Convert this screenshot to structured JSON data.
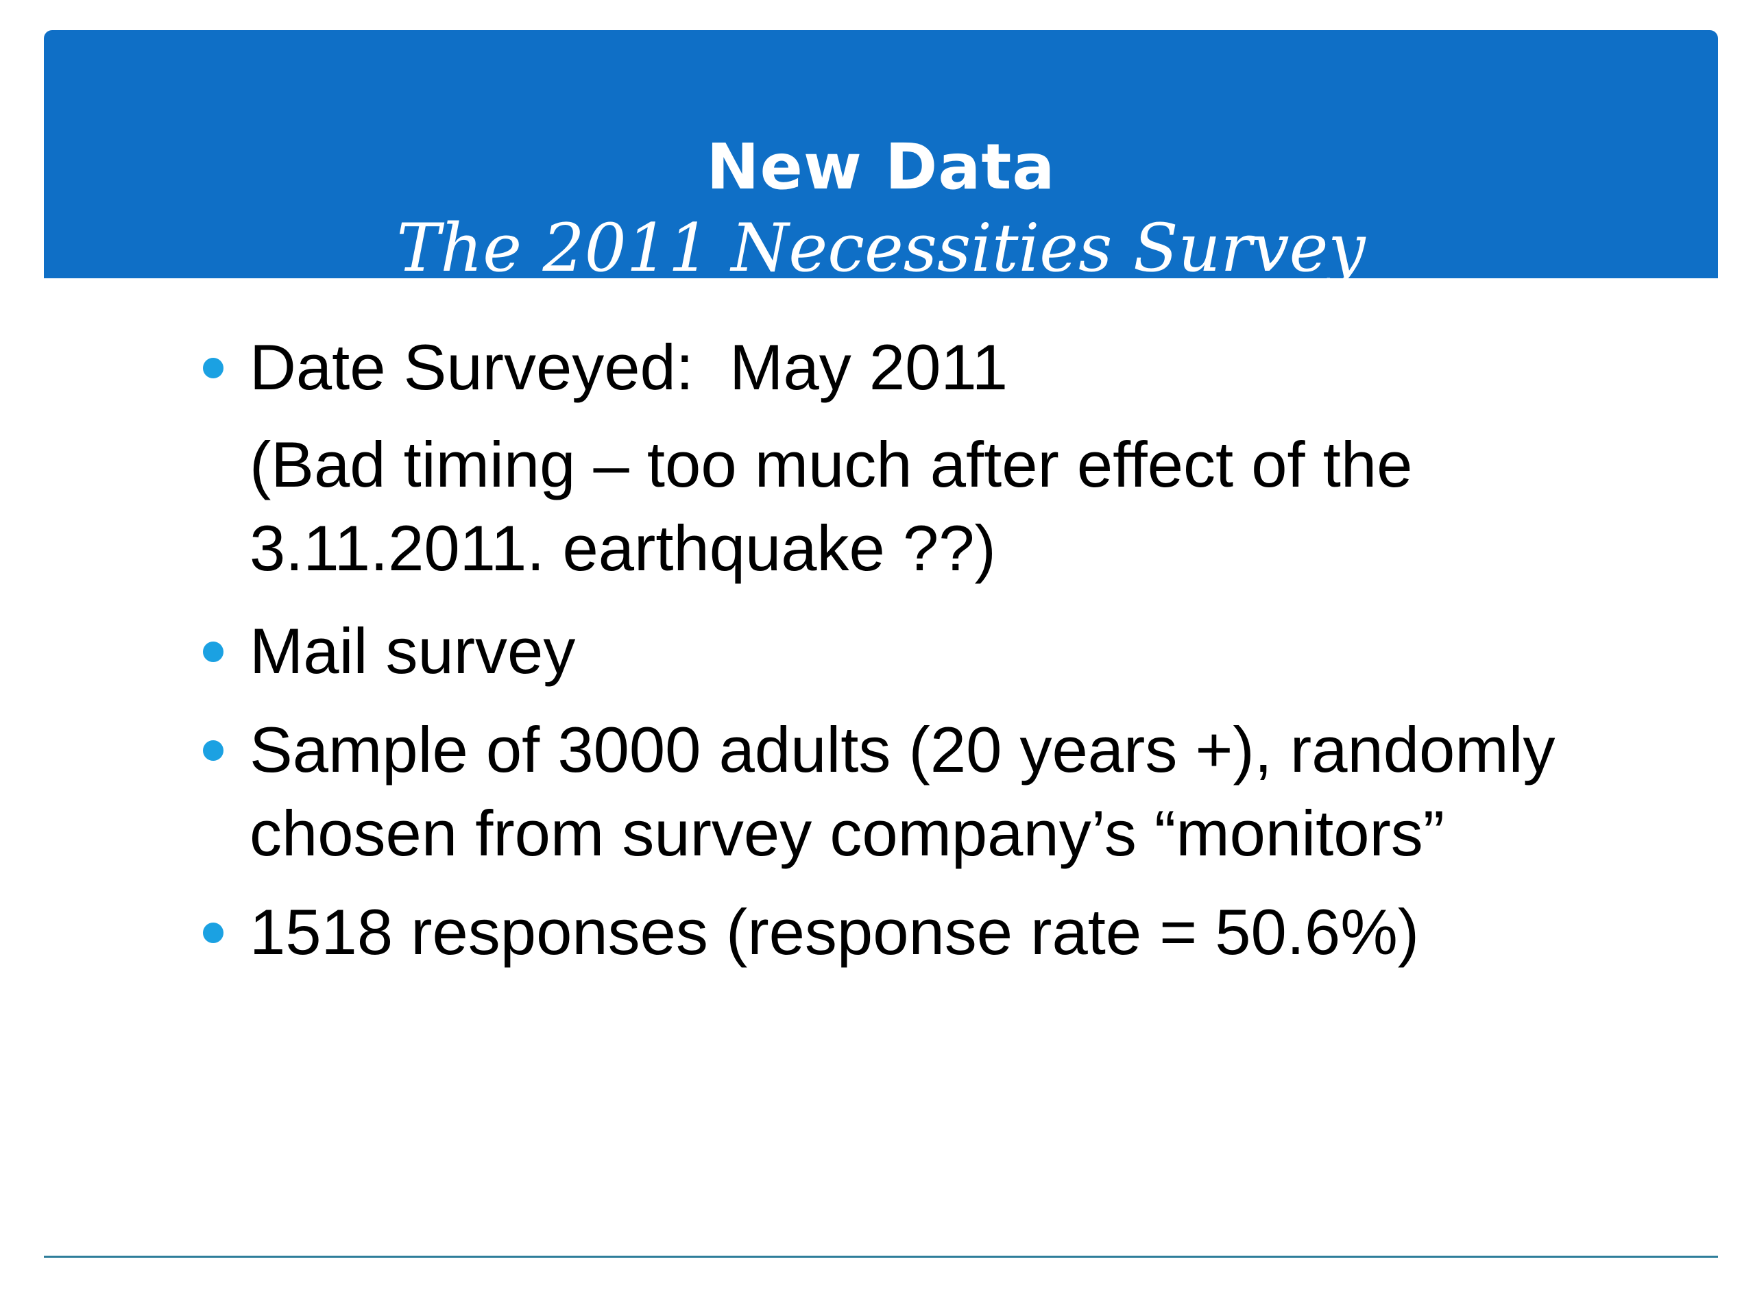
{
  "slide": {
    "title": "New Data",
    "subtitle": "The 2011 Necessities Survey",
    "colors": {
      "banner": "#0f6fc6",
      "bullet": "#1ba1e2",
      "rule": "#2e7d9a",
      "text": "#000000"
    },
    "bullets": [
      {
        "text": "Date Surveyed:  May 2011",
        "note": "(Bad timing – too much after effect of the 3.11.2011. earthquake ??)"
      },
      {
        "text": "Mail survey"
      },
      {
        "text": "Sample of 3000 adults (20 years +), randomly chosen from survey company’s “monitors”"
      },
      {
        "text": "1518 responses (response rate = 50.6%)"
      }
    ]
  }
}
